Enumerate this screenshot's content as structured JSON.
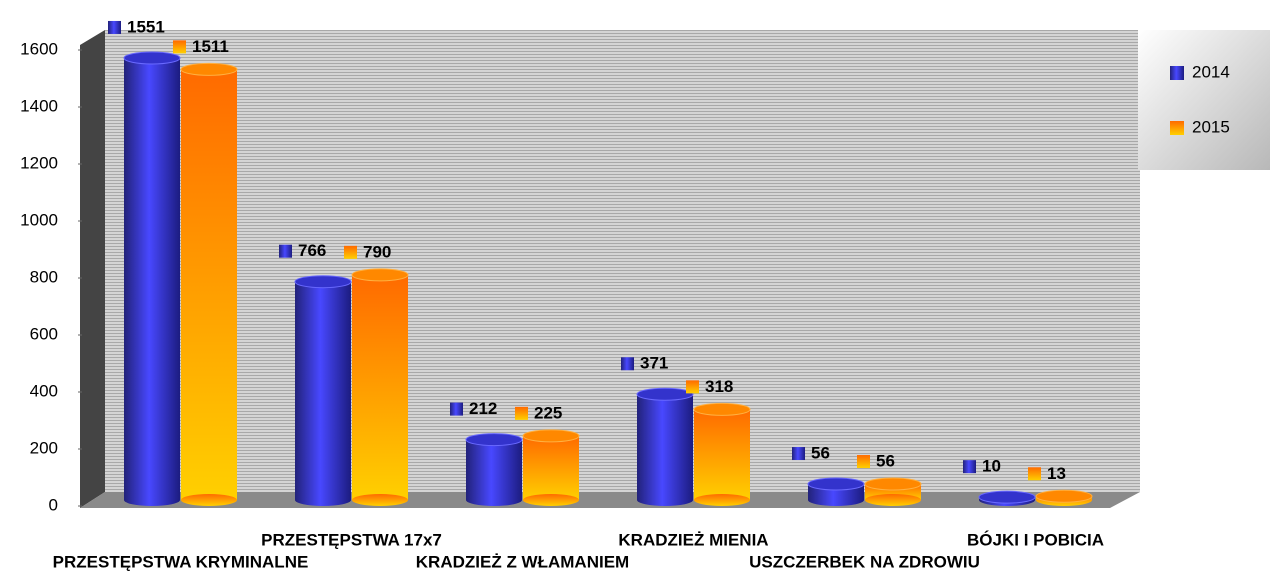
{
  "chart_data": {
    "type": "bar",
    "categories": [
      "PRZESTĘPSTWA KRYMINALNE",
      "PRZESTĘPSTWA 17x7",
      "KRADZIEŻ Z WŁAMANIEM",
      "KRADZIEŻ MIENIA",
      "USZCZERBEK NA ZDROWIU",
      "BÓJKI I POBICIA"
    ],
    "series": [
      {
        "name": "2014",
        "color": "#3333cc",
        "values": [
          1551,
          766,
          212,
          371,
          56,
          10
        ]
      },
      {
        "name": "2015",
        "color": "#ff8800",
        "values": [
          1511,
          790,
          225,
          318,
          56,
          13
        ]
      }
    ],
    "ylim": [
      0,
      1600
    ],
    "yticks": [
      0,
      200,
      400,
      600,
      800,
      1000,
      1200,
      1400,
      1600
    ],
    "legend": "right"
  }
}
